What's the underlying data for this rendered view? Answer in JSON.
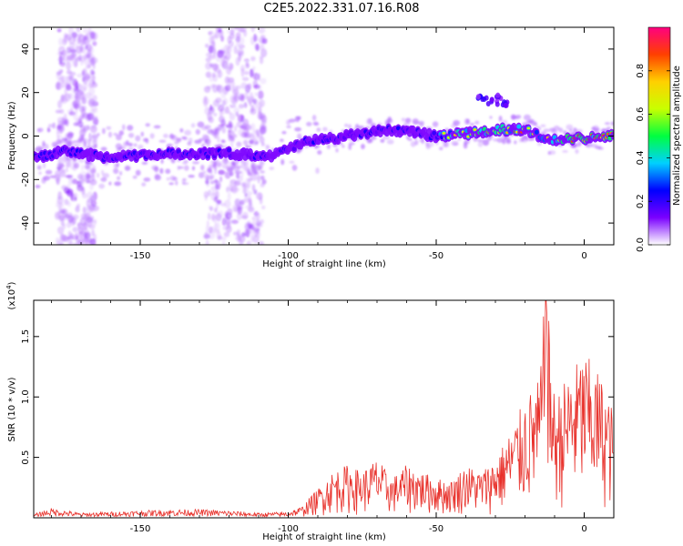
{
  "title": "C2E5.2022.331.07.16.R08",
  "colors": {
    "snr_line": "#e8302a",
    "colorbar": [
      "#ffffff",
      "#7a00ff",
      "#0000ff",
      "#00d0ff",
      "#00ff40",
      "#c8ff00",
      "#ffd000",
      "#ff4000",
      "#ff0080"
    ]
  },
  "chart_data": [
    {
      "type": "heatmap",
      "title": "",
      "xlabel": "Height of straight line (km)",
      "ylabel": "Frequency (Hz)",
      "xlim": [
        -186,
        10
      ],
      "ylim": [
        -50,
        50
      ],
      "x_ticks": [
        "-150",
        "-100",
        "-50",
        "0"
      ],
      "x_tick_values": [
        -150,
        -100,
        -50,
        0
      ],
      "y_ticks": [
        "-40",
        "-20",
        "0",
        "20",
        "40"
      ],
      "y_tick_values": [
        -40,
        -20,
        0,
        20,
        40
      ],
      "colorbar": {
        "label": "Normalized spectral amplitude",
        "range": [
          0,
          1
        ],
        "ticks": [
          "0.0",
          "0.2",
          "0.4",
          "0.6",
          "0.8"
        ],
        "tick_values": [
          0.0,
          0.2,
          0.4,
          0.6,
          0.8
        ]
      },
      "trace": {
        "description_points": [
          {
            "x": -186,
            "y": -10
          },
          {
            "x": -175,
            "y": -7
          },
          {
            "x": -160,
            "y": -10
          },
          {
            "x": -140,
            "y": -8
          },
          {
            "x": -120,
            "y": -8
          },
          {
            "x": -105,
            "y": -9
          },
          {
            "x": -95,
            "y": -3
          },
          {
            "x": -80,
            "y": 0
          },
          {
            "x": -65,
            "y": 3
          },
          {
            "x": -50,
            "y": 0
          },
          {
            "x": -40,
            "y": 1
          },
          {
            "x": -30,
            "y": 3
          },
          {
            "x": -20,
            "y": 3
          },
          {
            "x": -12,
            "y": -2
          },
          {
            "x": 0,
            "y": -1
          },
          {
            "x": 8,
            "y": 0
          }
        ],
        "secondary_blob": {
          "x": -30,
          "y": 17
        }
      }
    },
    {
      "type": "line",
      "title": "",
      "xlabel": "Height of straight line (km)",
      "ylabel": "SNR (10 * v/v)",
      "y_multiplier": "(x10",
      "y_multiplier_exp": "4",
      "y_multiplier_close": ")",
      "xlim": [
        -186,
        10
      ],
      "ylim": [
        0,
        1.8
      ],
      "x_ticks": [
        "-150",
        "-100",
        "-50",
        "0"
      ],
      "x_tick_values": [
        -150,
        -100,
        -50,
        0
      ],
      "y_ticks": [
        "0.5",
        "1.0",
        "1.5"
      ],
      "y_tick_values": [
        0.5,
        1.0,
        1.5
      ],
      "series": [
        {
          "x": [
            -186,
            -180,
            -170,
            -160,
            -150,
            -140,
            -130,
            -120,
            -110,
            -100,
            -95,
            -90,
            -85,
            -80,
            -75,
            -70,
            -65,
            -60,
            -55,
            -50,
            -45,
            -40,
            -35,
            -30,
            -25,
            -20,
            -15,
            -13,
            -10,
            -5,
            0,
            5,
            10
          ],
          "values": [
            0.03,
            0.08,
            0.04,
            0.05,
            0.06,
            0.07,
            0.07,
            0.06,
            0.04,
            0.05,
            0.1,
            0.22,
            0.35,
            0.4,
            0.35,
            0.45,
            0.3,
            0.4,
            0.35,
            0.3,
            0.28,
            0.4,
            0.35,
            0.45,
            0.65,
            0.9,
            1.05,
            1.8,
            0.9,
            1.1,
            1.25,
            1.1,
            0.8
          ]
        }
      ]
    }
  ]
}
